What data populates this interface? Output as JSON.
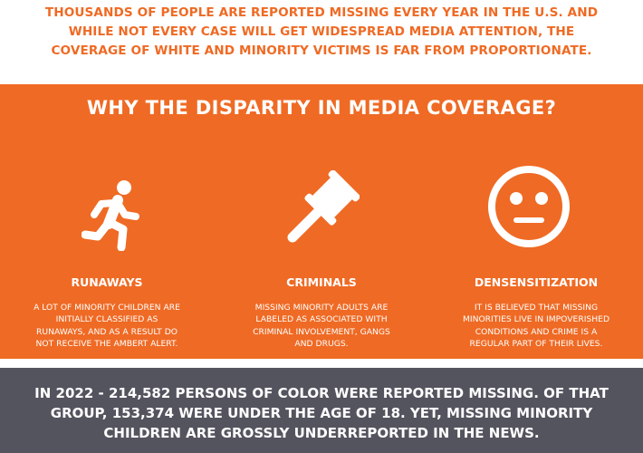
{
  "header": {
    "lines": [
      "THOUSANDS OF PEOPLE ARE REPORTED MISSING EVERY YEAR IN THE U.S. AND",
      "WHILE NOT EVERY CASE WILL GET WIDESPREAD MEDIA ATTENTION, THE",
      "COVERAGE OF WHITE AND MINORITY VICTIMS IS FAR FROM PROPORTIONATE."
    ]
  },
  "panel": {
    "title": "WHY THE DISPARITY IN MEDIA COVERAGE?",
    "columns": [
      {
        "icon": "running-person-icon",
        "title": "RUNAWAYS",
        "desc": [
          "A LOT OF MINORITY CHILDREN ARE",
          "INITIALLY CLASSIFIED AS",
          "RUNAWAYS, AND AS A RESULT DO",
          "NOT RECEIVE THE AMBERT ALERT."
        ]
      },
      {
        "icon": "gavel-icon",
        "title": "CRIMINALS",
        "desc": [
          "MISSING MINORITY ADULTS ARE",
          "LABELED AS ASSOCIATED WITH",
          "CRIMINAL INVOLVEMENT, GANGS",
          "AND DRUGS."
        ]
      },
      {
        "icon": "neutral-face-icon",
        "title": "DENSENSITIZATION",
        "desc": [
          "IT IS BELIEVED THAT MISSING",
          "MINORITIES LIVE IN IMPOVERISHED",
          "CONDITIONS AND CRIME IS A",
          "REGULAR PART OF THEIR LIVES."
        ]
      }
    ]
  },
  "footer": {
    "lines": [
      "IN 2022 - 214,582 PERSONS OF COLOR WERE REPORTED MISSING. OF THAT",
      "GROUP, 153,374 WERE UNDER THE AGE OF 18. YET, MISSING MINORITY",
      "CHILDREN ARE GROSSLY UNDERREPORTED IN THE NEWS."
    ]
  },
  "colors": {
    "accent": "#ef6a24",
    "footer_bg": "#54545f",
    "text_light": "#ffffff"
  }
}
